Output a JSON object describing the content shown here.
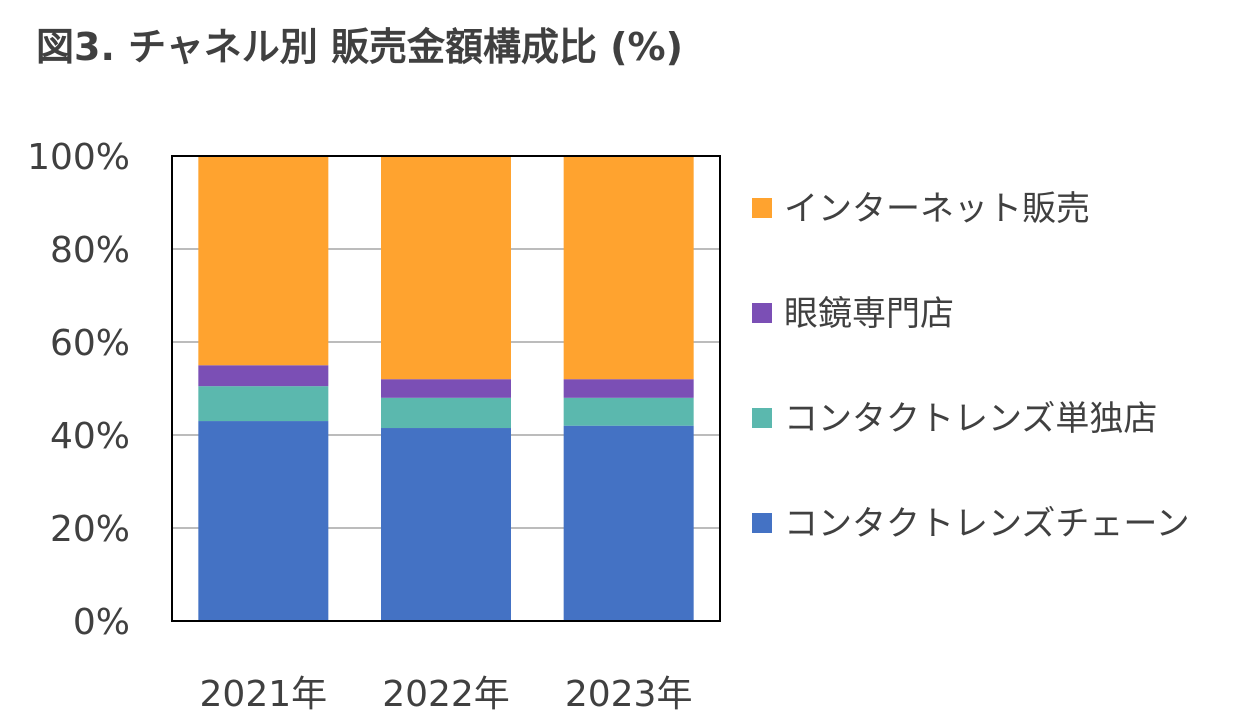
{
  "chart_data": {
    "type": "bar",
    "stacked": true,
    "title": "図3. チャネル別 販売金額構成比 (%)",
    "categories": [
      "2021年",
      "2022年",
      "2023年"
    ],
    "series": [
      {
        "name": "コンタクトレンズチェーン",
        "color": "#4472C4",
        "values": [
          43,
          41.5,
          42
        ]
      },
      {
        "name": "コンタクトレンズ単独店",
        "color": "#5BB8AE",
        "values": [
          7.5,
          6.5,
          6
        ]
      },
      {
        "name": "眼鏡専門店",
        "color": "#7B4FB5",
        "values": [
          4.5,
          4,
          4
        ]
      },
      {
        "name": "インターネット販売",
        "color": "#FFA32F",
        "values": [
          45,
          48,
          48
        ]
      }
    ],
    "ylim": [
      0,
      100
    ],
    "yticks": [
      "0%",
      "20%",
      "40%",
      "60%",
      "80%",
      "100%"
    ],
    "ytick_values": [
      0,
      20,
      40,
      60,
      80,
      100
    ],
    "grid": true,
    "legend": "right",
    "legend_order": [
      "インターネット販売",
      "眼鏡専門店",
      "コンタクトレンズ単独店",
      "コンタクトレンズチェーン"
    ]
  }
}
